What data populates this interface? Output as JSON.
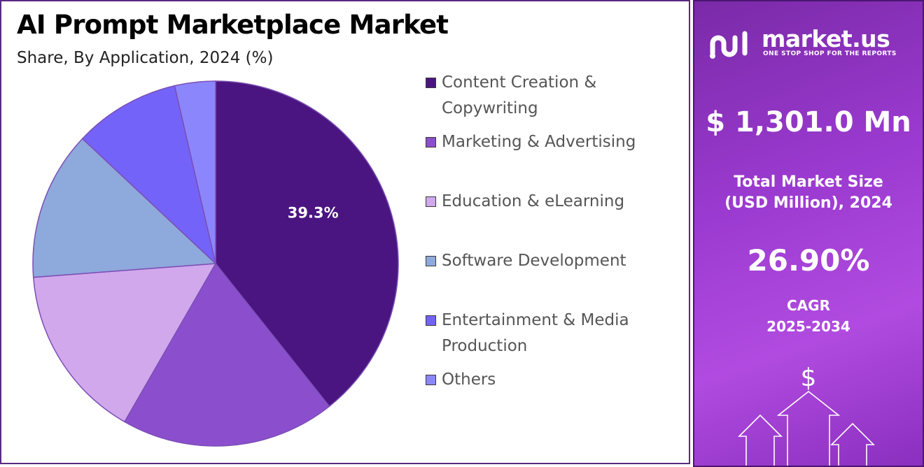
{
  "header": {
    "title": "AI Prompt Marketplace Market",
    "subtitle": "Share, By Application, 2024 (%)"
  },
  "chart_data": {
    "type": "pie",
    "title": "AI Prompt Marketplace Market",
    "subtitle": "Share, By Application, 2024 (%)",
    "start_angle_deg": 0,
    "direction": "clockwise",
    "categories": [
      "Content Creation & Copywriting",
      "Marketing & Advertising",
      "Education & eLearning",
      "Software Development",
      "Entertainment & Media Production",
      "Others"
    ],
    "values": [
      39.3,
      19.0,
      15.5,
      13.2,
      9.4,
      3.6
    ],
    "colors": [
      "#4a1580",
      "#8b4fce",
      "#d1a8ec",
      "#8ea9db",
      "#7463f9",
      "#8c86fc"
    ],
    "data_labels": [
      "39.3%",
      "",
      "",
      "",
      "",
      ""
    ],
    "legend": {
      "placement": "right",
      "items": [
        {
          "label": "Content Creation & Copywriting",
          "color": "#4a1580"
        },
        {
          "label": "Marketing & Advertising",
          "color": "#8b4fce"
        },
        {
          "label": "Education & eLearning",
          "color": "#d1a8ec"
        },
        {
          "label": "Software Development",
          "color": "#8ea9db"
        },
        {
          "label": "Entertainment & Media Production",
          "color": "#7463f9"
        },
        {
          "label": "Others",
          "color": "#8c86fc"
        }
      ]
    },
    "slice_border_color": "#7b4fb5"
  },
  "sidebar": {
    "brand_name": "market.us",
    "brand_tagline": "ONE STOP SHOP FOR THE REPORTS",
    "market_value": "$ 1,301.0 Mn",
    "market_label_line1": "Total Market Size",
    "market_label_line2": "(USD Million), 2024",
    "cagr_value": "26.90%",
    "cagr_label_line1": "CAGR",
    "cagr_label_line2": "2025-2034",
    "dollar_symbol": "$"
  }
}
